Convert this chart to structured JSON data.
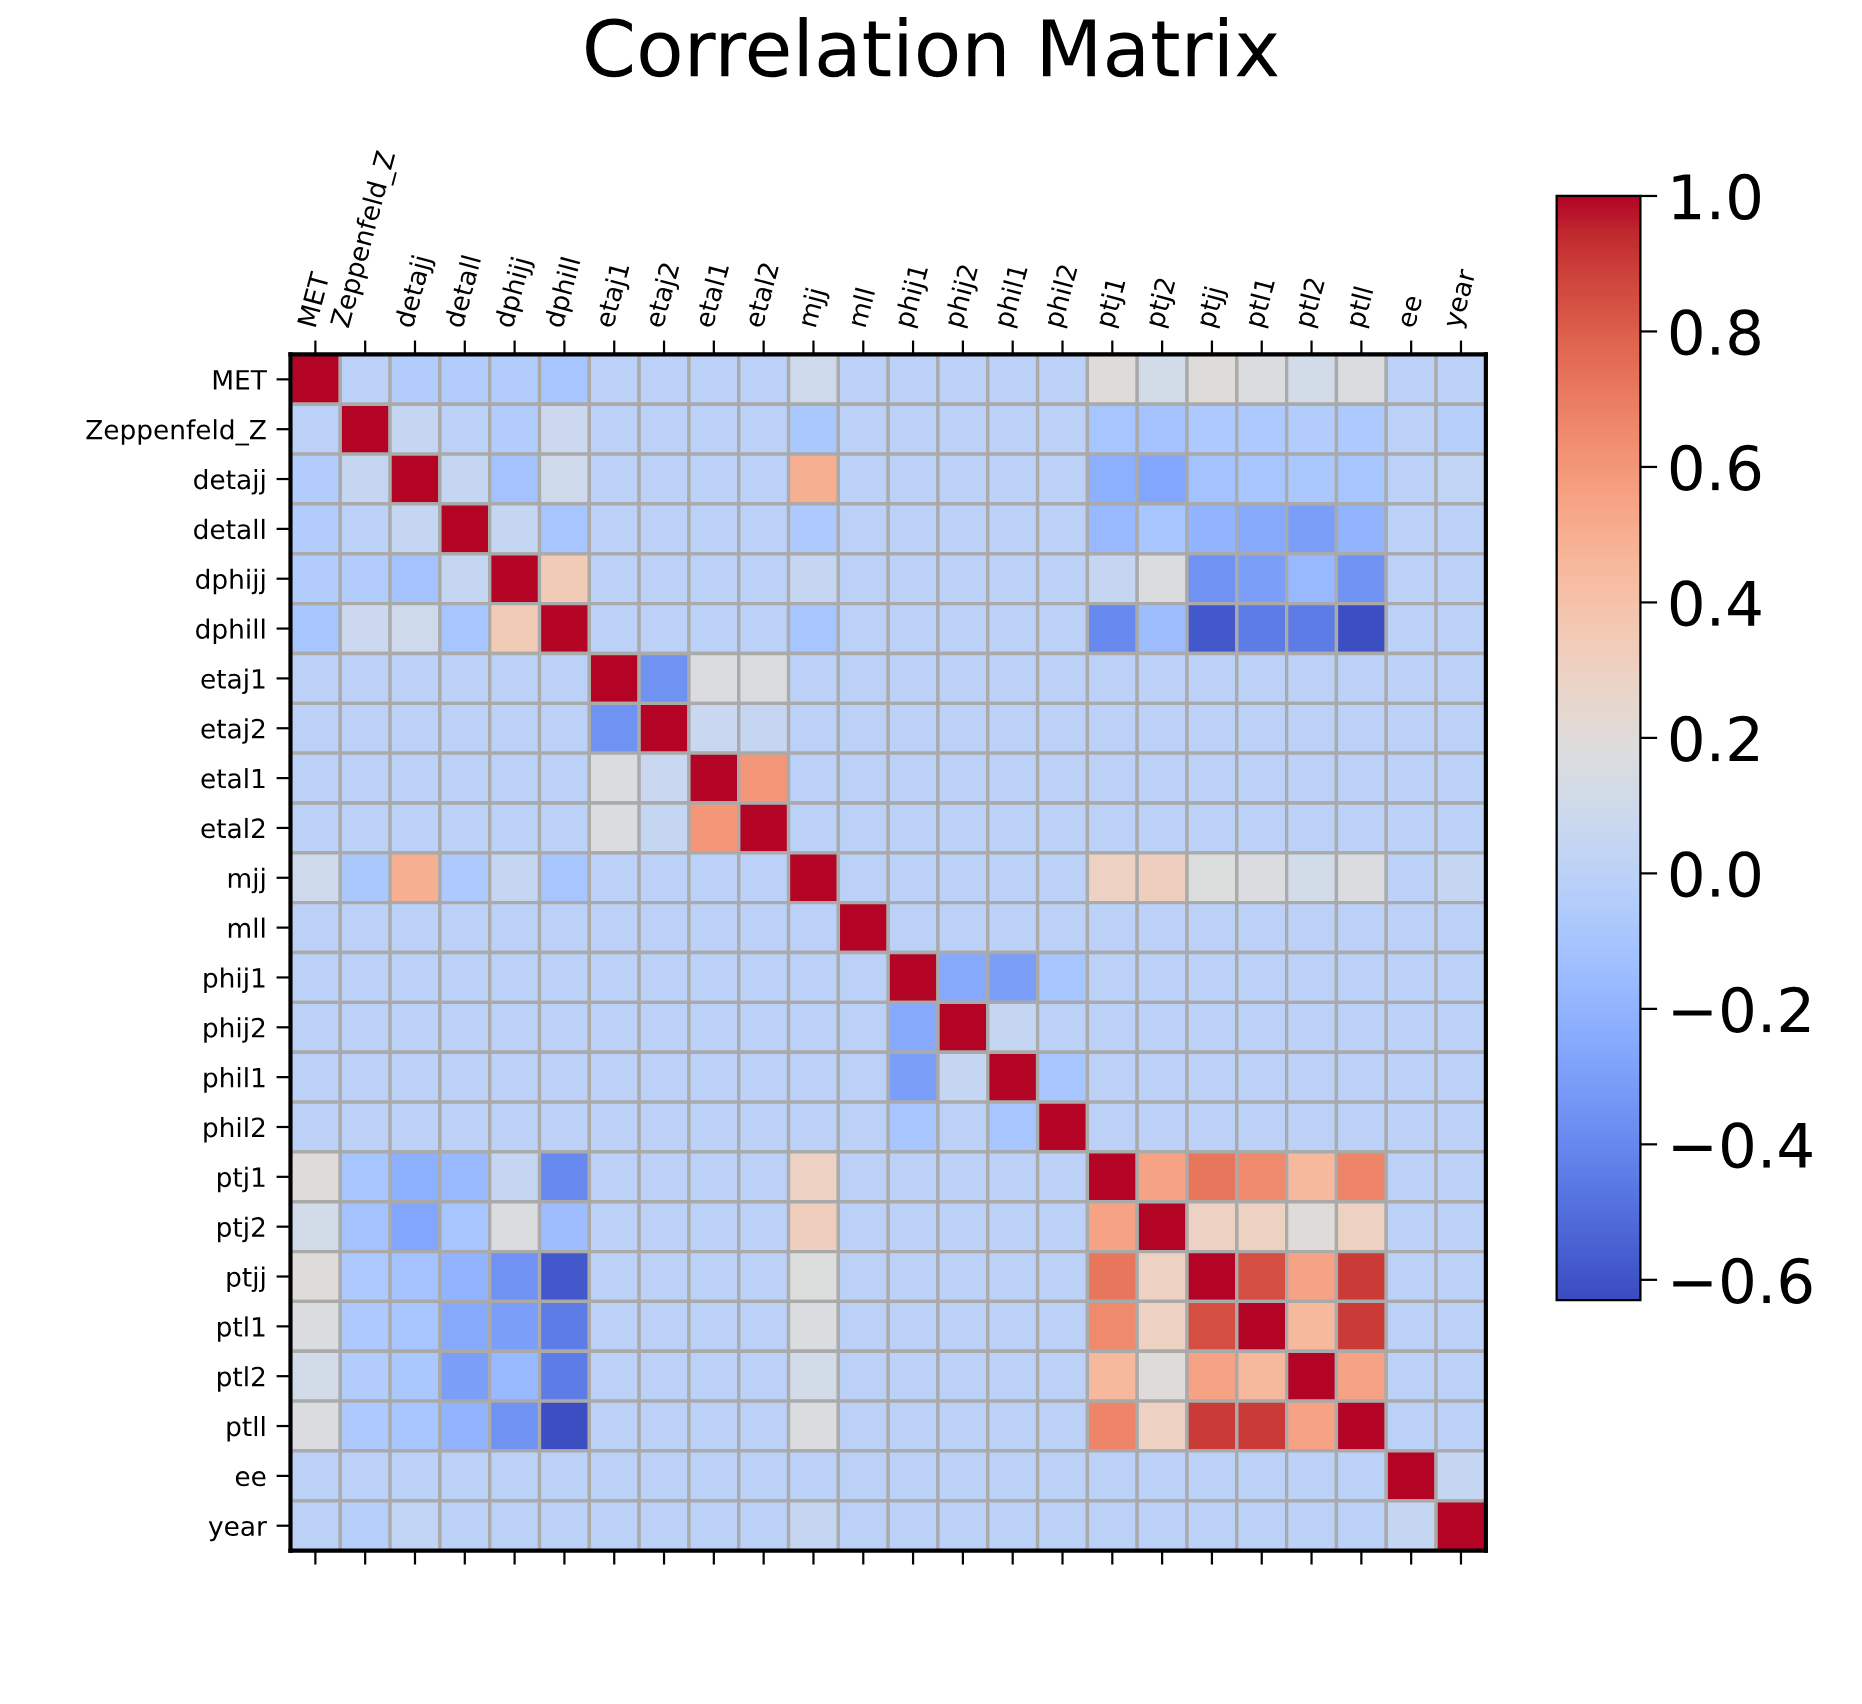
{
  "chart_data": {
    "type": "heatmap",
    "title": "Correlation Matrix",
    "categories": [
      "MET",
      "Zeppenfeld_Z",
      "detajj",
      "detall",
      "dphijj",
      "dphill",
      "etaj1",
      "etaj2",
      "etal1",
      "etal2",
      "mjj",
      "mll",
      "phij1",
      "phij2",
      "phil1",
      "phil2",
      "ptj1",
      "ptj2",
      "ptjj",
      "ptl1",
      "ptl2",
      "ptll",
      "ee",
      "year"
    ],
    "y_categories": [
      "MET",
      "Zeppenfeld_Z",
      "detajj",
      "detall",
      "dphijj",
      "dphill",
      "etaj1",
      "etaj2",
      "etal1",
      "etal2",
      "mjj",
      "mll",
      "phij1",
      "phij2",
      "phil1",
      "phil2",
      "ptj1",
      "ptj2",
      "ptjj",
      "ptl1",
      "ptl2",
      "ptll",
      "ee",
      "year"
    ],
    "cells": [
      [
        1,
        0,
        -0.05,
        -0.05,
        -0.05,
        -0.1,
        0,
        0,
        0,
        0,
        0.1,
        0,
        0,
        0,
        0,
        0,
        0.2,
        0.12,
        0.2,
        0.17,
        0.12,
        0.17,
        0,
        0
      ],
      [
        0,
        1,
        0.05,
        0,
        -0.05,
        0.08,
        0,
        0,
        0,
        0,
        -0.08,
        0,
        0,
        0,
        0,
        0,
        -0.1,
        -0.12,
        -0.07,
        -0.07,
        -0.05,
        -0.07,
        0,
        -0.03
      ],
      [
        -0.05,
        0.05,
        1,
        0.05,
        -0.12,
        0.1,
        0,
        0,
        0,
        0,
        0.5,
        0,
        0,
        0,
        0,
        0,
        -0.22,
        -0.27,
        -0.12,
        -0.1,
        -0.08,
        -0.1,
        0,
        0.03
      ],
      [
        -0.05,
        0,
        0.05,
        1,
        0.05,
        -0.1,
        0,
        0,
        0,
        0,
        -0.07,
        0,
        0,
        0,
        0,
        0,
        -0.17,
        -0.1,
        -0.2,
        -0.25,
        -0.3,
        -0.2,
        0,
        0
      ],
      [
        -0.05,
        -0.05,
        -0.12,
        0.05,
        1,
        0.35,
        0,
        0,
        0,
        0,
        0.05,
        0,
        0,
        0,
        0,
        0,
        0.05,
        0.17,
        -0.35,
        -0.3,
        -0.17,
        -0.35,
        0,
        0
      ],
      [
        -0.1,
        0.08,
        0.1,
        -0.1,
        0.35,
        1,
        0,
        0,
        0,
        0,
        -0.1,
        0,
        0,
        0,
        0,
        0,
        -0.4,
        -0.15,
        -0.58,
        -0.45,
        -0.45,
        -0.62,
        0,
        0
      ],
      [
        0,
        0,
        0,
        0,
        0,
        0,
        1,
        -0.35,
        0.17,
        0.17,
        0,
        0,
        0,
        0,
        0,
        0,
        0,
        0,
        0,
        0,
        0,
        0,
        0,
        0
      ],
      [
        0,
        0,
        0,
        0,
        0,
        0,
        -0.35,
        1,
        0.07,
        0.05,
        0,
        0,
        0,
        0,
        0,
        0,
        0,
        0,
        0,
        0,
        0,
        0,
        0,
        0
      ],
      [
        0,
        0,
        0,
        0,
        0,
        0,
        0.17,
        0.07,
        1,
        0.6,
        0,
        0,
        0,
        0,
        0,
        0,
        0,
        0,
        0,
        0,
        0,
        0,
        0,
        0
      ],
      [
        0,
        0,
        0,
        0,
        0,
        0,
        0.17,
        0.05,
        0.6,
        1,
        0,
        0,
        0,
        0,
        0,
        0,
        0,
        0,
        0,
        0,
        0,
        0,
        0,
        0
      ],
      [
        0.1,
        -0.08,
        0.5,
        -0.07,
        0.05,
        -0.1,
        0,
        0,
        0,
        0,
        1,
        0,
        0,
        0,
        0,
        0,
        0.3,
        0.32,
        0.18,
        0.17,
        0.12,
        0.17,
        0,
        0.05
      ],
      [
        0,
        0,
        0,
        0,
        0,
        0,
        0,
        0,
        0,
        0,
        0,
        1,
        0,
        0,
        0,
        0,
        0,
        0,
        0,
        0,
        0,
        0,
        0,
        0
      ],
      [
        0,
        0,
        0,
        0,
        0,
        0,
        0,
        0,
        0,
        0,
        0,
        0,
        1,
        -0.25,
        -0.3,
        -0.1,
        0,
        0,
        0,
        0,
        0,
        0,
        0,
        0
      ],
      [
        0,
        0,
        0,
        0,
        0,
        0,
        0,
        0,
        0,
        0,
        0,
        0,
        -0.25,
        1,
        0.05,
        0,
        0,
        0,
        0,
        0,
        0,
        0,
        0,
        0
      ],
      [
        0,
        0,
        0,
        0,
        0,
        0,
        0,
        0,
        0,
        0,
        0,
        0,
        -0.3,
        0.05,
        1,
        -0.1,
        0,
        0,
        0,
        0,
        0,
        0,
        0,
        0
      ],
      [
        0,
        0,
        0,
        0,
        0,
        0,
        0,
        0,
        0,
        0,
        0,
        0,
        -0.1,
        0,
        -0.1,
        1,
        0,
        0,
        0,
        0,
        0,
        0,
        0,
        0
      ],
      [
        0.2,
        -0.1,
        -0.22,
        -0.17,
        0.05,
        -0.4,
        0,
        0,
        0,
        0,
        0.3,
        0,
        0,
        0,
        0,
        0,
        1,
        0.55,
        0.72,
        0.65,
        0.45,
        0.67,
        0,
        0
      ],
      [
        0.12,
        -0.12,
        -0.27,
        -0.1,
        0.17,
        -0.15,
        0,
        0,
        0,
        0,
        0.32,
        0,
        0,
        0,
        0,
        0,
        0.55,
        1,
        0.3,
        0.3,
        0.2,
        0.3,
        0,
        0
      ],
      [
        0.2,
        -0.07,
        -0.12,
        -0.2,
        -0.35,
        -0.58,
        0,
        0,
        0,
        0,
        0.18,
        0,
        0,
        0,
        0,
        0,
        0.72,
        0.3,
        1,
        0.85,
        0.55,
        0.9,
        0,
        0
      ],
      [
        0.17,
        -0.07,
        -0.1,
        -0.25,
        -0.3,
        -0.45,
        0,
        0,
        0,
        0,
        0.17,
        0,
        0,
        0,
        0,
        0,
        0.65,
        0.3,
        0.85,
        1,
        0.45,
        0.9,
        0,
        0
      ],
      [
        0.12,
        -0.05,
        -0.08,
        -0.3,
        -0.17,
        -0.45,
        0,
        0,
        0,
        0,
        0.12,
        0,
        0,
        0,
        0,
        0,
        0.45,
        0.2,
        0.55,
        0.45,
        1,
        0.55,
        0,
        0
      ],
      [
        0.17,
        -0.07,
        -0.1,
        -0.2,
        -0.35,
        -0.62,
        0,
        0,
        0,
        0,
        0.17,
        0,
        0,
        0,
        0,
        0,
        0.67,
        0.3,
        0.9,
        0.9,
        0.55,
        1,
        0,
        0
      ],
      [
        0,
        0,
        0,
        0,
        0,
        0,
        0,
        0,
        0,
        0,
        0,
        0,
        0,
        0,
        0,
        0,
        0,
        0,
        0,
        0,
        0,
        0,
        1,
        0.05
      ],
      [
        0,
        -0.03,
        0.03,
        0,
        0,
        0,
        0,
        0,
        0,
        0,
        0.05,
        0,
        0,
        0,
        0,
        0,
        0,
        0,
        0,
        0,
        0,
        0,
        0.05,
        1
      ]
    ],
    "clim": [
      -0.63,
      1.0
    ],
    "cticks": [
      {
        "value": -0.6,
        "label": "−0.6"
      },
      {
        "value": -0.4,
        "label": "−0.4"
      },
      {
        "value": -0.2,
        "label": "−0.2"
      },
      {
        "value": 0,
        "label": "0.0"
      },
      {
        "value": 0.2,
        "label": "0.2"
      },
      {
        "value": 0.4,
        "label": "0.4"
      },
      {
        "value": 0.6,
        "label": "0.6"
      },
      {
        "value": 0.8,
        "label": "0.8"
      },
      {
        "value": 1.0,
        "label": "1.0"
      }
    ]
  }
}
